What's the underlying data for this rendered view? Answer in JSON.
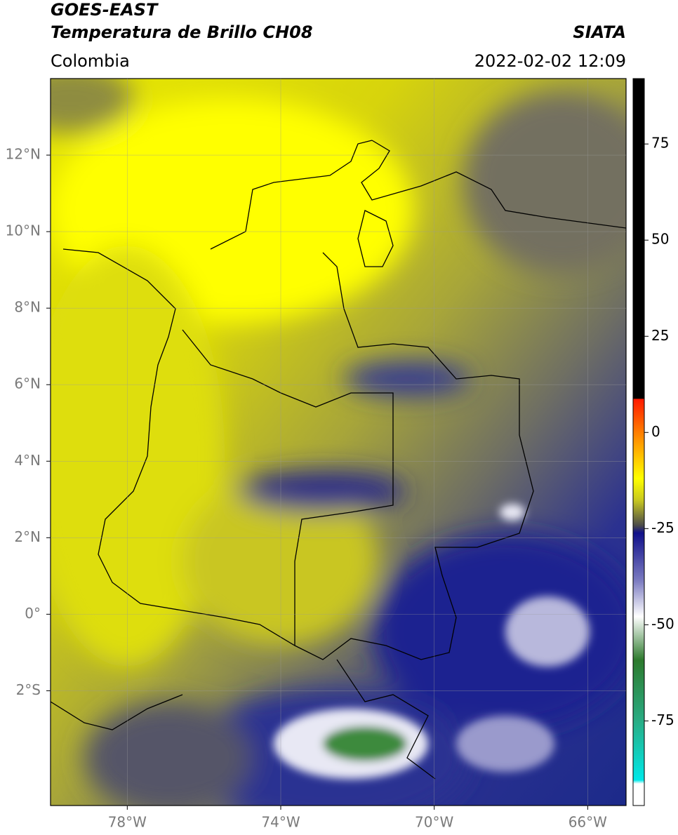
{
  "header": {
    "satellite": "GOES-EAST",
    "product": "Temperatura de Brillo CH08",
    "region": "Colombia",
    "source": "SIATA",
    "datetime": "2022-02-02 12:09"
  },
  "map": {
    "xlim": [
      -80,
      -65
    ],
    "ylim": [
      -5,
      14
    ],
    "xticks": [
      {
        "value": -78,
        "label": "78°W"
      },
      {
        "value": -74,
        "label": "74°W"
      },
      {
        "value": -70,
        "label": "70°W"
      },
      {
        "value": -66,
        "label": "66°W"
      }
    ],
    "yticks": [
      {
        "value": 12,
        "label": "12°N"
      },
      {
        "value": 10,
        "label": "10°N"
      },
      {
        "value": 8,
        "label": "8°N"
      },
      {
        "value": 6,
        "label": "6°N"
      },
      {
        "value": 4,
        "label": "4°N"
      },
      {
        "value": 2,
        "label": "2°N"
      },
      {
        "value": 0,
        "label": "0°"
      },
      {
        "value": -2,
        "label": "2°S"
      }
    ]
  },
  "colorbar": {
    "lim": [
      -97,
      92
    ],
    "ticks": [
      75,
      50,
      25,
      0,
      -25,
      -50,
      -75
    ]
  }
}
